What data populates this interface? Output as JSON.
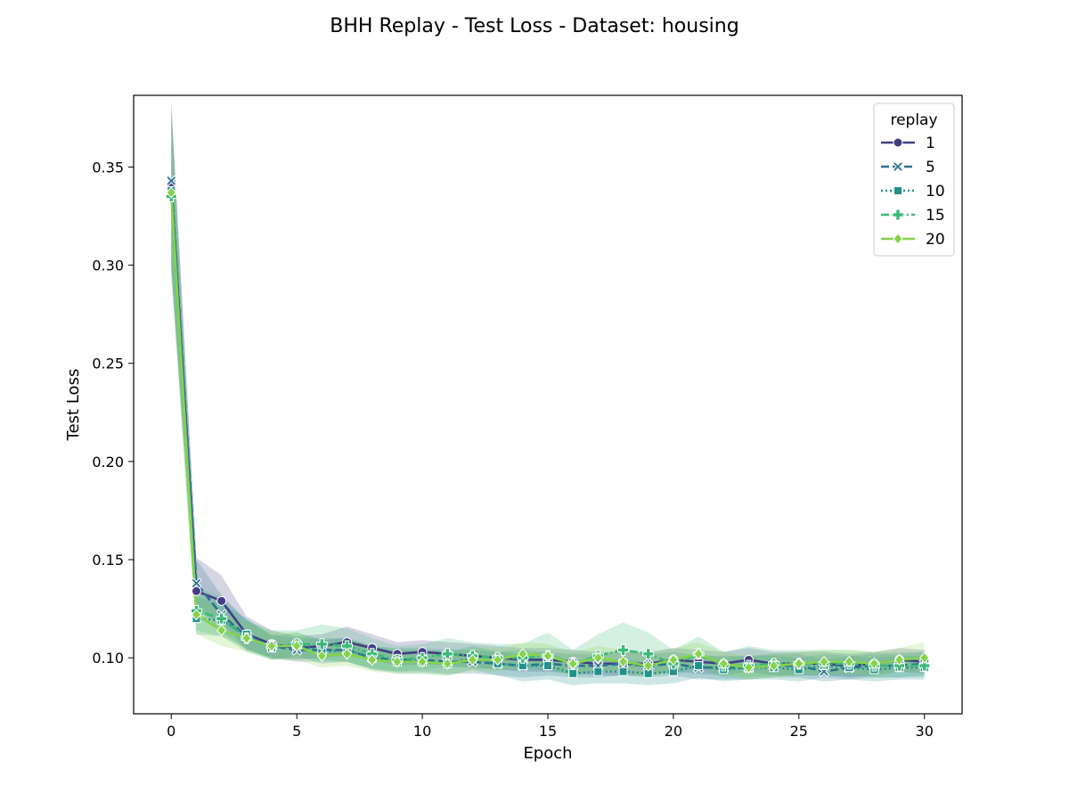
{
  "chart_data": {
    "type": "line",
    "title": "BHH Replay - Test Loss - Dataset: housing",
    "xlabel": "Epoch",
    "ylabel": "Test Loss",
    "xlim": [
      -1.5,
      31.5
    ],
    "ylim": [
      0.0715,
      0.3865
    ],
    "xticks": [
      0,
      5,
      10,
      15,
      20,
      25,
      30
    ],
    "yticks": [
      0.1,
      0.15,
      0.2,
      0.25,
      0.3,
      0.35
    ],
    "grid": false,
    "legend": {
      "title": "replay",
      "placement": "top-right"
    },
    "x": [
      0,
      1,
      2,
      3,
      4,
      5,
      6,
      7,
      8,
      9,
      10,
      11,
      12,
      13,
      14,
      15,
      16,
      17,
      18,
      19,
      20,
      21,
      22,
      23,
      24,
      25,
      26,
      27,
      28,
      29,
      30
    ],
    "series": [
      {
        "name": "1",
        "color": "#433e85",
        "marker": "circle",
        "dash": "solid",
        "values": [
          0.34,
          0.134,
          0.129,
          0.112,
          0.107,
          0.105,
          0.106,
          0.108,
          0.105,
          0.102,
          0.103,
          0.102,
          0.101,
          0.1,
          0.099,
          0.099,
          0.098,
          0.097,
          0.097,
          0.097,
          0.099,
          0.098,
          0.097,
          0.099,
          0.097,
          0.097,
          0.097,
          0.096,
          0.097,
          0.099,
          0.098
        ],
        "band": [
          [
            0.298,
            0.384
          ],
          [
            0.124,
            0.151
          ],
          [
            0.118,
            0.142
          ],
          [
            0.104,
            0.121
          ],
          [
            0.1,
            0.114
          ],
          [
            0.099,
            0.111
          ],
          [
            0.1,
            0.112
          ],
          [
            0.101,
            0.116
          ],
          [
            0.099,
            0.112
          ],
          [
            0.096,
            0.108
          ],
          [
            0.097,
            0.109
          ],
          [
            0.096,
            0.108
          ],
          [
            0.095,
            0.107
          ],
          [
            0.094,
            0.106
          ],
          [
            0.093,
            0.105
          ],
          [
            0.093,
            0.105
          ],
          [
            0.092,
            0.104
          ],
          [
            0.091,
            0.103
          ],
          [
            0.091,
            0.103
          ],
          [
            0.091,
            0.103
          ],
          [
            0.093,
            0.105
          ],
          [
            0.092,
            0.104
          ],
          [
            0.091,
            0.103
          ],
          [
            0.093,
            0.105
          ],
          [
            0.091,
            0.103
          ],
          [
            0.091,
            0.103
          ],
          [
            0.091,
            0.103
          ],
          [
            0.09,
            0.102
          ],
          [
            0.091,
            0.103
          ],
          [
            0.093,
            0.105
          ],
          [
            0.092,
            0.104
          ]
        ]
      },
      {
        "name": "5",
        "color": "#2c718e",
        "marker": "x",
        "dash": "dashed",
        "values": [
          0.343,
          0.138,
          0.122,
          0.111,
          0.106,
          0.104,
          0.104,
          0.104,
          0.1,
          0.099,
          0.099,
          0.098,
          0.098,
          0.097,
          0.096,
          0.097,
          0.096,
          0.096,
          0.097,
          0.096,
          0.097,
          0.095,
          0.095,
          0.095,
          0.096,
          0.096,
          0.093,
          0.095,
          0.096,
          0.096,
          0.097
        ],
        "band": [
          [
            0.3,
            0.382
          ],
          [
            0.126,
            0.15
          ],
          [
            0.113,
            0.132
          ],
          [
            0.104,
            0.119
          ],
          [
            0.1,
            0.112
          ],
          [
            0.098,
            0.11
          ],
          [
            0.098,
            0.11
          ],
          [
            0.098,
            0.11
          ],
          [
            0.094,
            0.106
          ],
          [
            0.093,
            0.105
          ],
          [
            0.093,
            0.105
          ],
          [
            0.092,
            0.104
          ],
          [
            0.092,
            0.104
          ],
          [
            0.091,
            0.103
          ],
          [
            0.09,
            0.102
          ],
          [
            0.091,
            0.103
          ],
          [
            0.09,
            0.102
          ],
          [
            0.09,
            0.102
          ],
          [
            0.091,
            0.103
          ],
          [
            0.09,
            0.102
          ],
          [
            0.091,
            0.103
          ],
          [
            0.089,
            0.101
          ],
          [
            0.089,
            0.101
          ],
          [
            0.089,
            0.101
          ],
          [
            0.09,
            0.102
          ],
          [
            0.09,
            0.102
          ],
          [
            0.088,
            0.099
          ],
          [
            0.089,
            0.101
          ],
          [
            0.09,
            0.102
          ],
          [
            0.09,
            0.102
          ],
          [
            0.091,
            0.103
          ]
        ]
      },
      {
        "name": "10",
        "color": "#21918c",
        "marker": "square",
        "dash": "dotted",
        "values": [
          0.338,
          0.12,
          0.119,
          0.112,
          0.105,
          0.107,
          0.103,
          0.104,
          0.1,
          0.098,
          0.098,
          0.097,
          0.1,
          0.097,
          0.096,
          0.096,
          0.092,
          0.093,
          0.093,
          0.092,
          0.093,
          0.096,
          0.094,
          0.095,
          0.095,
          0.094,
          0.096,
          0.095,
          0.094,
          0.095,
          0.095
        ],
        "band": [
          [
            0.297,
            0.378
          ],
          [
            0.112,
            0.131
          ],
          [
            0.111,
            0.128
          ],
          [
            0.105,
            0.12
          ],
          [
            0.099,
            0.111
          ],
          [
            0.101,
            0.113
          ],
          [
            0.097,
            0.109
          ],
          [
            0.098,
            0.11
          ],
          [
            0.094,
            0.106
          ],
          [
            0.092,
            0.104
          ],
          [
            0.092,
            0.104
          ],
          [
            0.091,
            0.103
          ],
          [
            0.094,
            0.106
          ],
          [
            0.091,
            0.103
          ],
          [
            0.088,
            0.104
          ],
          [
            0.089,
            0.103
          ],
          [
            0.086,
            0.098
          ],
          [
            0.087,
            0.099
          ],
          [
            0.087,
            0.099
          ],
          [
            0.086,
            0.098
          ],
          [
            0.087,
            0.099
          ],
          [
            0.09,
            0.102
          ],
          [
            0.088,
            0.1
          ],
          [
            0.089,
            0.101
          ],
          [
            0.089,
            0.101
          ],
          [
            0.088,
            0.1
          ],
          [
            0.09,
            0.102
          ],
          [
            0.089,
            0.101
          ],
          [
            0.088,
            0.1
          ],
          [
            0.089,
            0.101
          ],
          [
            0.089,
            0.101
          ]
        ]
      },
      {
        "name": "15",
        "color": "#3aba76",
        "marker": "plus",
        "dash": "dashdot",
        "values": [
          0.335,
          0.124,
          0.12,
          0.11,
          0.106,
          0.107,
          0.107,
          0.106,
          0.102,
          0.099,
          0.1,
          0.102,
          0.101,
          0.1,
          0.1,
          0.101,
          0.097,
          0.101,
          0.104,
          0.102,
          0.097,
          0.102,
          0.096,
          0.096,
          0.097,
          0.097,
          0.097,
          0.097,
          0.096,
          0.096,
          0.096
        ],
        "band": [
          [
            0.296,
            0.376
          ],
          [
            0.114,
            0.136
          ],
          [
            0.111,
            0.131
          ],
          [
            0.103,
            0.119
          ],
          [
            0.099,
            0.114
          ],
          [
            0.1,
            0.114
          ],
          [
            0.099,
            0.117
          ],
          [
            0.098,
            0.115
          ],
          [
            0.095,
            0.11
          ],
          [
            0.093,
            0.106
          ],
          [
            0.094,
            0.107
          ],
          [
            0.095,
            0.11
          ],
          [
            0.095,
            0.108
          ],
          [
            0.094,
            0.107
          ],
          [
            0.094,
            0.107
          ],
          [
            0.094,
            0.113
          ],
          [
            0.091,
            0.104
          ],
          [
            0.093,
            0.112
          ],
          [
            0.095,
            0.118
          ],
          [
            0.094,
            0.113
          ],
          [
            0.091,
            0.104
          ],
          [
            0.095,
            0.111
          ],
          [
            0.09,
            0.103
          ],
          [
            0.09,
            0.106
          ],
          [
            0.091,
            0.104
          ],
          [
            0.091,
            0.104
          ],
          [
            0.091,
            0.104
          ],
          [
            0.091,
            0.104
          ],
          [
            0.09,
            0.103
          ],
          [
            0.09,
            0.103
          ],
          [
            0.09,
            0.103
          ]
        ]
      },
      {
        "name": "20",
        "color": "#84d44b",
        "marker": "diamond",
        "dash": "solid",
        "values": [
          0.337,
          0.122,
          0.114,
          0.11,
          0.106,
          0.106,
          0.101,
          0.102,
          0.099,
          0.098,
          0.098,
          0.097,
          0.099,
          0.099,
          0.102,
          0.101,
          0.097,
          0.1,
          0.098,
          0.096,
          0.099,
          0.102,
          0.097,
          0.095,
          0.096,
          0.097,
          0.098,
          0.098,
          0.097,
          0.099,
          0.1
        ],
        "band": [
          [
            0.295,
            0.378
          ],
          [
            0.112,
            0.133
          ],
          [
            0.106,
            0.123
          ],
          [
            0.103,
            0.118
          ],
          [
            0.099,
            0.113
          ],
          [
            0.099,
            0.113
          ],
          [
            0.095,
            0.108
          ],
          [
            0.096,
            0.109
          ],
          [
            0.093,
            0.106
          ],
          [
            0.092,
            0.104
          ],
          [
            0.092,
            0.104
          ],
          [
            0.091,
            0.103
          ],
          [
            0.093,
            0.105
          ],
          [
            0.093,
            0.105
          ],
          [
            0.096,
            0.108
          ],
          [
            0.095,
            0.107
          ],
          [
            0.091,
            0.103
          ],
          [
            0.094,
            0.106
          ],
          [
            0.092,
            0.104
          ],
          [
            0.09,
            0.102
          ],
          [
            0.093,
            0.105
          ],
          [
            0.096,
            0.108
          ],
          [
            0.091,
            0.103
          ],
          [
            0.089,
            0.101
          ],
          [
            0.09,
            0.102
          ],
          [
            0.091,
            0.103
          ],
          [
            0.092,
            0.104
          ],
          [
            0.092,
            0.104
          ],
          [
            0.091,
            0.103
          ],
          [
            0.093,
            0.105
          ],
          [
            0.093,
            0.108
          ]
        ]
      }
    ]
  }
}
